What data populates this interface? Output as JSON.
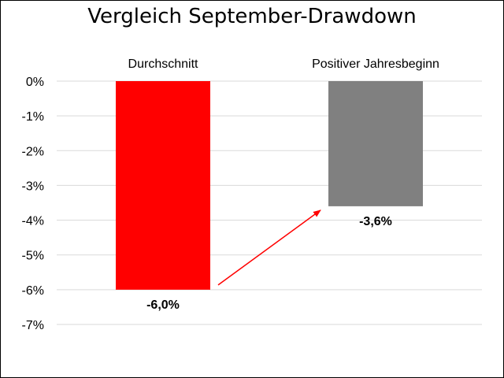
{
  "chart_data": {
    "type": "bar",
    "title": "Vergleich September-Drawdown",
    "categories": [
      "Durchschnitt",
      "Positiver Jahresbeginn"
    ],
    "values": [
      -6.0,
      -3.6
    ],
    "data_labels": [
      "-6,0%",
      "-3,6%"
    ],
    "colors": [
      "#ff0000",
      "#808080"
    ],
    "ylim": [
      -7,
      0
    ],
    "yticks": [
      0,
      -1,
      -2,
      -3,
      -4,
      -5,
      -6,
      -7
    ],
    "ytick_labels": [
      "0%",
      "-1%",
      "-2%",
      "-3%",
      "-4%",
      "-5%",
      "-6%",
      "-7%"
    ],
    "category_labels_position": "top",
    "grid": true,
    "annotation": {
      "type": "arrow",
      "from_category": "Durchschnitt",
      "to_category": "Positiver Jahresbeginn",
      "color": "#ff0000"
    }
  }
}
